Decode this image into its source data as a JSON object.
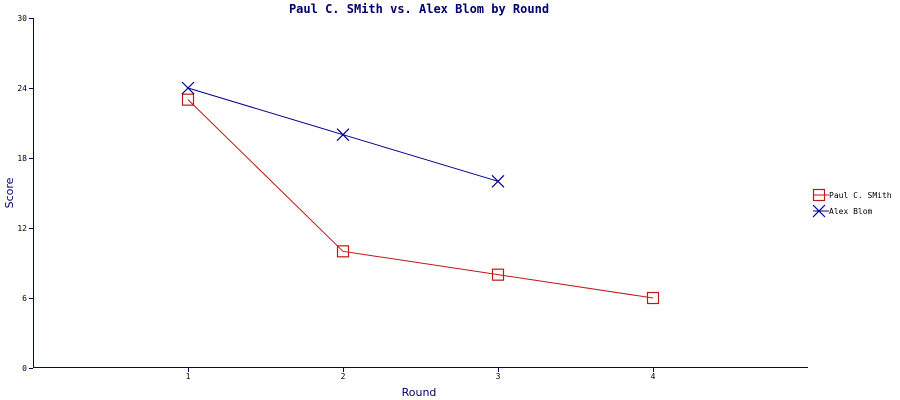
{
  "chart_data": {
    "type": "line",
    "title": "Paul C. SMith vs. Alex Blom by Round",
    "xlabel": "Round",
    "ylabel": "Score",
    "categories": [
      "1",
      "2",
      "3",
      "4"
    ],
    "ylim": [
      0,
      30
    ],
    "yticks": [
      "0",
      "6",
      "12",
      "18",
      "24",
      "30"
    ],
    "grid": false,
    "legend_position": "right",
    "series": [
      {
        "name": "Paul C. SMith",
        "marker": "square",
        "color": "#c01818",
        "values": [
          23,
          10,
          8,
          6
        ]
      },
      {
        "name": "Alex Blom",
        "marker": "x",
        "color": "#00008c",
        "values": [
          24,
          20,
          16,
          null
        ]
      }
    ]
  },
  "colors": {
    "axis": "#00006e",
    "title": "#00006e"
  }
}
